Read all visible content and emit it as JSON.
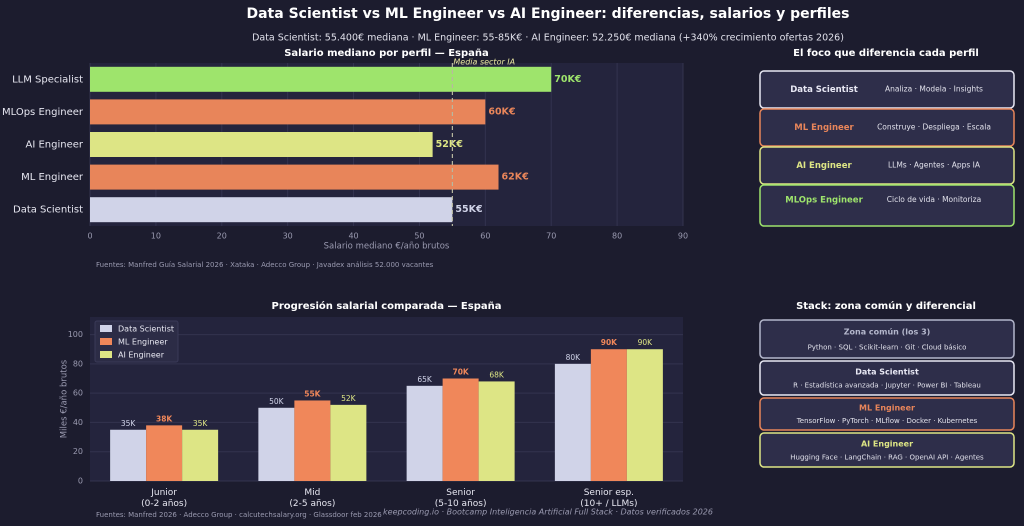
{
  "header": {
    "title": "Data Scientist vs ML Engineer vs AI Engineer: diferencias, salarios y perfiles",
    "subtitle": "Data Scientist: 55.400€ mediana · ML Engineer: 55-85K€ · AI Engineer: 52.250€ mediana (+340% crecimiento ofertas 2026)"
  },
  "chart_data": [
    {
      "type": "hbar",
      "title": "Salario mediano por perfil — España",
      "categories": [
        "LLM Specialist",
        "MLOps Engineer",
        "AI Engineer",
        "ML Engineer",
        "Data Scientist"
      ],
      "values": [
        70,
        60,
        52,
        62,
        55
      ],
      "value_labels": [
        "70K€",
        "60K€",
        "52K€",
        "62K€",
        "55K€"
      ],
      "colors": [
        "#9ee46c",
        "#e8855a",
        "#dde585",
        "#e8855a",
        "#d0d3e8"
      ],
      "xlim": [
        0,
        90
      ],
      "xticks": [
        0,
        10,
        20,
        30,
        40,
        50,
        60,
        70,
        80,
        90
      ],
      "xlabel": "Salario mediano €/año brutos",
      "reference_line": {
        "value": 55,
        "label": "Media sector IA"
      },
      "grid": true,
      "source": "Fuentes: Manfred Guía Salarial 2026 · Xataka · Adecco Group · Javadex análisis 52.000 vacantes"
    },
    {
      "type": "grouped_bar",
      "title": "Progresión salarial comparada — España",
      "categories": [
        "Junior\n(0-2 años)",
        "Mid\n(2-5 años)",
        "Senior\n(5-10 años)",
        "Senior esp.\n(10+ / LLMs)"
      ],
      "series": [
        {
          "name": "Data Scientist",
          "color": "#d0d3e8",
          "values": [
            35,
            50,
            65,
            80
          ],
          "value_labels": [
            "35K",
            "50K",
            "65K",
            "80K"
          ]
        },
        {
          "name": "ML Engineer",
          "color": "#f0875a",
          "values": [
            38,
            55,
            70,
            90
          ],
          "value_labels": [
            "38K",
            "55K",
            "70K",
            "90K"
          ]
        },
        {
          "name": "AI Engineer",
          "color": "#dde585",
          "values": [
            35,
            52,
            68,
            90
          ],
          "value_labels": [
            "35K",
            "52K",
            "68K",
            "90K"
          ]
        }
      ],
      "ylim": [
        0,
        112
      ],
      "yticks": [
        0,
        20,
        40,
        60,
        80,
        100
      ],
      "ylabel": "Miles €/año brutos",
      "legend": "upper left",
      "grid": true,
      "source": "Fuentes: Manfred 2026 · Adecco Group · calcutechsalary.org · Glassdoor feb 2026"
    }
  ],
  "focus_panel": {
    "title": "El foco que diferencia cada perfil",
    "items": [
      {
        "name": "Data Scientist",
        "description": "Analiza · Modela · Insights",
        "color": "#e8e8f4"
      },
      {
        "name": "ML Engineer",
        "description": "Construye · Despliega · Escala",
        "color": "#e8855a"
      },
      {
        "name": "AI Engineer",
        "description": "LLMs · Agentes · Apps IA",
        "color": "#dde585"
      },
      {
        "name": "MLOps Engineer",
        "description": "Ciclo de vida · Monitoriza",
        "color": "#9ee46c"
      }
    ]
  },
  "stack_panel": {
    "title": "Stack: zona común y diferencial",
    "items": [
      {
        "name": "Zona común (los 3)",
        "tools": "Python · SQL · Scikit-learn · Git · Cloud básico",
        "color": "#b4b7cc"
      },
      {
        "name": "Data Scientist",
        "tools": "R · Estadística avanzada · Jupyter · Power BI · Tableau",
        "color": "#e8e8f4"
      },
      {
        "name": "ML Engineer",
        "tools": "TensorFlow · PyTorch · MLflow · Docker · Kubernetes",
        "color": "#e8855a"
      },
      {
        "name": "AI Engineer",
        "tools": "Hugging Face · LangChain · RAG · OpenAI API · Agentes",
        "color": "#dde585"
      }
    ]
  },
  "footer": "keepcoding.io  ·  Bootcamp Inteligencia Artificial Full Stack  ·  Datos verificados 2026"
}
